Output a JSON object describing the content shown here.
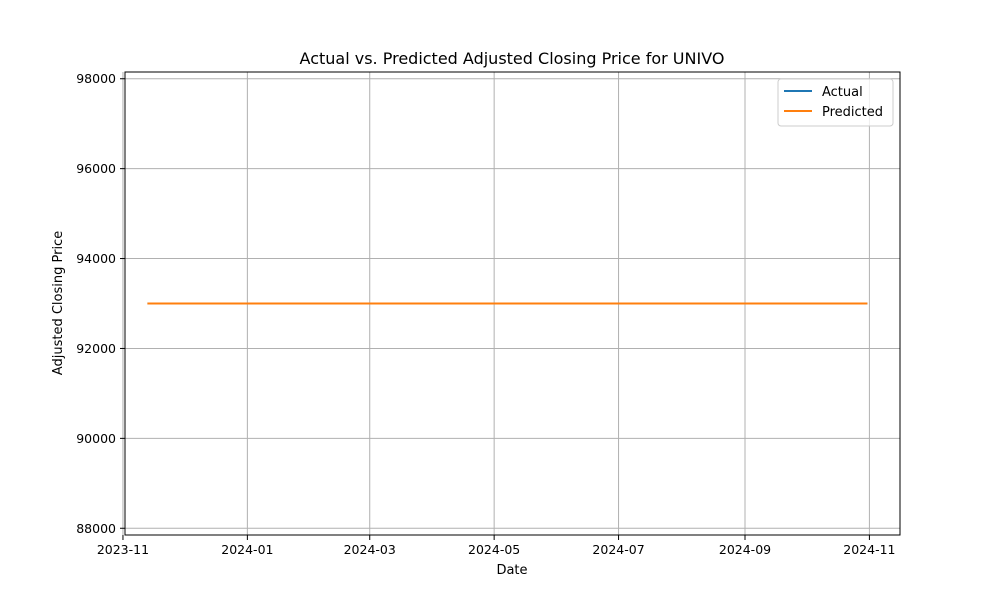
{
  "chart_data": {
    "type": "line",
    "title": "Actual vs. Predicted Adjusted Closing Price for UNIVO",
    "xlabel": "Date",
    "ylabel": "Adjusted Closing Price",
    "x_scale": "date",
    "xlim": [
      "2023-11-02",
      "2024-11-16"
    ],
    "ylim": [
      87850,
      98150
    ],
    "x_ticks": [
      "2023-11",
      "2024-01",
      "2024-03",
      "2024-05",
      "2024-07",
      "2024-09",
      "2024-11"
    ],
    "y_ticks": [
      88000,
      90000,
      92000,
      94000,
      96000,
      98000
    ],
    "grid": true,
    "legend_position": "top-right",
    "series": [
      {
        "name": "Actual",
        "color": "#1f77b4",
        "x": [
          "2023-11-13",
          "2024-10-31"
        ],
        "values": [
          93000,
          93000
        ]
      },
      {
        "name": "Predicted",
        "color": "#ff7f0e",
        "x": [
          "2023-11-13",
          "2024-10-31"
        ],
        "values": [
          93000,
          93000
        ]
      }
    ]
  }
}
